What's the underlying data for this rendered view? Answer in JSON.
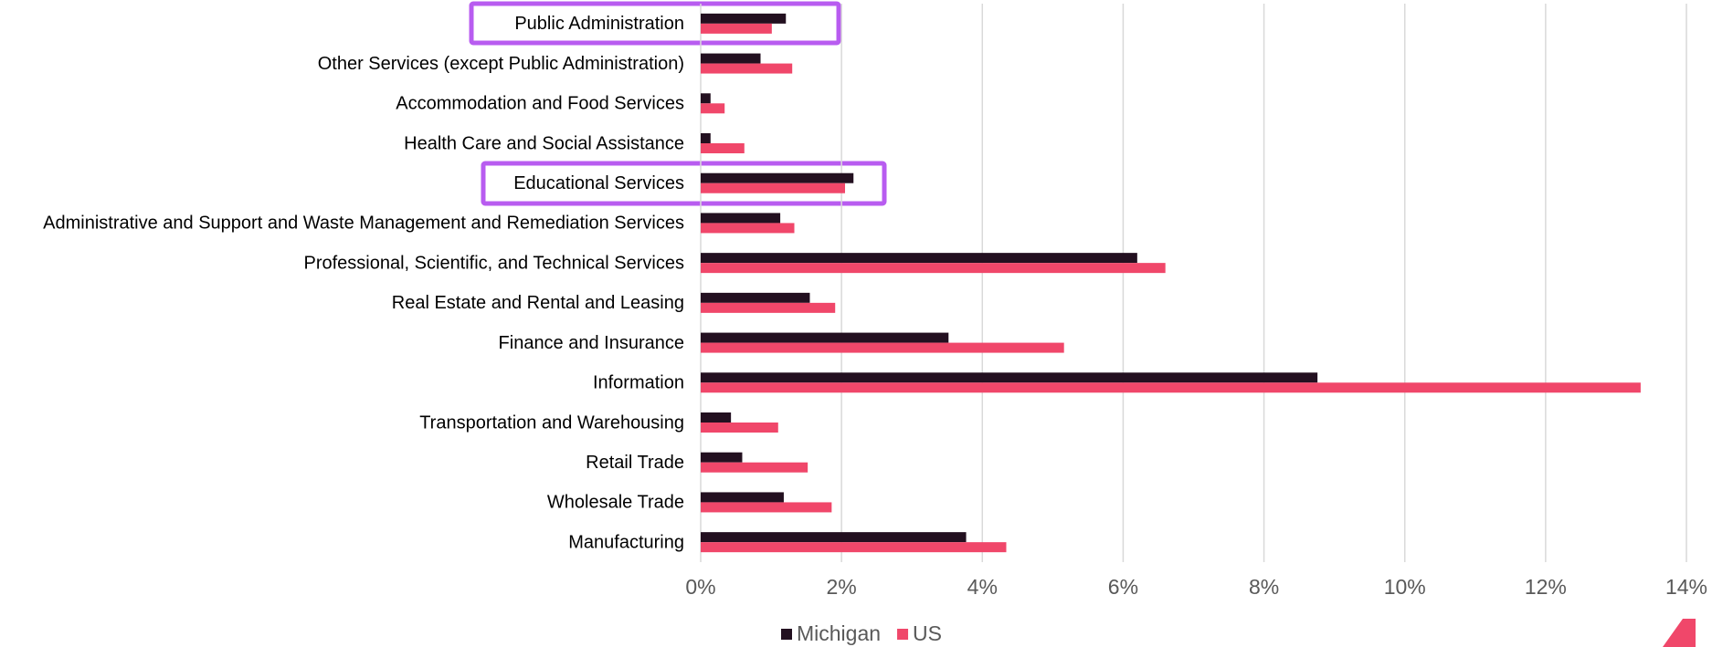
{
  "chart_data": {
    "type": "barh",
    "categories": [
      "Public Administration",
      "Other Services (except Public Administration)",
      "Accommodation and Food Services",
      "Health Care and Social Assistance",
      "Educational Services",
      "Administrative and Support and Waste Management and Remediation Services",
      "Professional, Scientific, and Technical Services",
      "Real Estate and Rental and Leasing",
      "Finance and Insurance",
      "Information",
      "Transportation and Warehousing",
      "Retail Trade",
      "Wholesale Trade",
      "Manufacturing"
    ],
    "series": [
      {
        "name": "Michigan",
        "color": "#231020",
        "values": [
          1.21,
          0.85,
          0.14,
          0.14,
          2.17,
          1.13,
          6.2,
          1.55,
          3.52,
          8.76,
          0.43,
          0.59,
          1.18,
          3.77
        ]
      },
      {
        "name": "US",
        "color": "#f0476a",
        "values": [
          1.01,
          1.3,
          0.34,
          0.62,
          2.05,
          1.33,
          6.6,
          1.91,
          5.16,
          13.35,
          1.1,
          1.52,
          1.86,
          4.34
        ]
      }
    ],
    "xlim": [
      0,
      14
    ],
    "xticks": [
      {
        "value": 0,
        "label": "0%"
      },
      {
        "value": 2,
        "label": "2%"
      },
      {
        "value": 4,
        "label": "4%"
      },
      {
        "value": 6,
        "label": "6%"
      },
      {
        "value": 8,
        "label": "8%"
      },
      {
        "value": 10,
        "label": "10%"
      },
      {
        "value": 12,
        "label": "12%"
      },
      {
        "value": 14,
        "label": "14%"
      }
    ],
    "grid": true,
    "legend": "bottom"
  }
}
